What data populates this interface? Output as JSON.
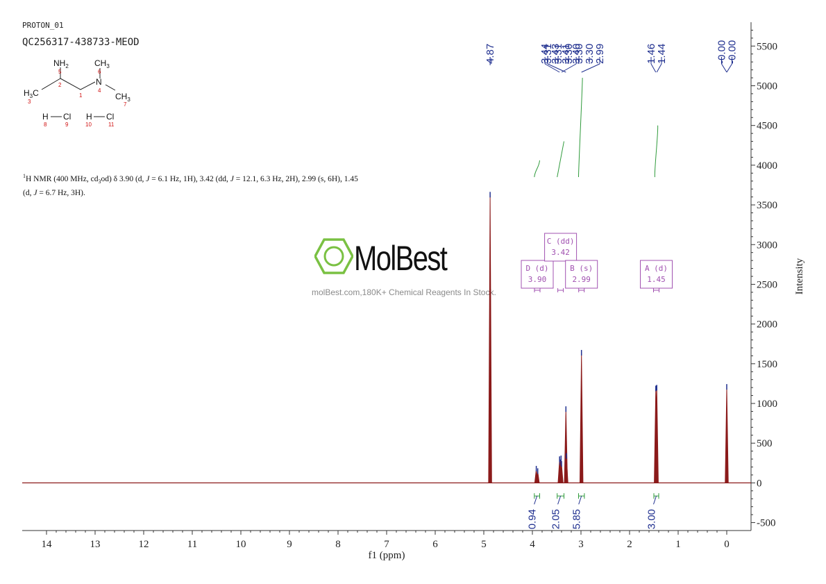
{
  "header": {
    "spectrum_name": "PROTON_01",
    "sample_id": "QC256317-438733-MEOD"
  },
  "structure": {
    "nh2_label": "NH2",
    "ch3_top_label": "CH3",
    "n_label": "N",
    "h3c_label": "H3C",
    "ch3_right_label": "CH3",
    "atom_numbers": [
      "5",
      "6",
      "2",
      "1",
      "4",
      "3",
      "7"
    ],
    "hcl_1": {
      "h": "H",
      "cl": "Cl",
      "h_num": "8",
      "cl_num": "9"
    },
    "hcl_2": {
      "h": "H",
      "cl": "Cl",
      "h_num": "10",
      "cl_num": "11"
    }
  },
  "description": {
    "line1": "1H NMR (400 MHz, cd3od) δ 3.90 (d, J = 6.1 Hz, 1H), 3.42 (dd, J = 12.1, 6.3 Hz, 2H), 2.99 (s, 6H), 1.45",
    "line2": "(d, J = 6.7 Hz, 3H)."
  },
  "watermark": {
    "brand": "MolBest",
    "url": "molBest.com,180K+ Chemical Reagents In Stock."
  },
  "colors": {
    "spectrum": "#8b1a1a",
    "peak_labels": "#1f2f8f",
    "integral": "#2e9a3a",
    "multiplet_box": "#a050b0",
    "logo": "#7ac143"
  },
  "chart_data": {
    "type": "line",
    "xlabel": "f1 (ppm)",
    "ylabel": "Intensity",
    "xlim": [
      14.5,
      -0.5
    ],
    "ylim": [
      -600,
      5800
    ],
    "x_ticks": [
      14,
      13,
      12,
      11,
      10,
      9,
      8,
      7,
      6,
      5,
      4,
      3,
      2,
      1,
      0
    ],
    "y_ticks": [
      -500,
      0,
      500,
      1000,
      1500,
      2000,
      2500,
      3000,
      3500,
      4000,
      4500,
      5000,
      5500
    ],
    "peaks": [
      {
        "ppm": 4.87,
        "height": 3620
      },
      {
        "ppm": 3.92,
        "height": 170
      },
      {
        "ppm": 3.89,
        "height": 140
      },
      {
        "ppm": 3.44,
        "height": 290
      },
      {
        "ppm": 3.43,
        "height": 250
      },
      {
        "ppm": 3.41,
        "height": 300
      },
      {
        "ppm": 3.4,
        "height": 230
      },
      {
        "ppm": 3.31,
        "height": 920
      },
      {
        "ppm": 3.3,
        "height": 330
      },
      {
        "ppm": 2.99,
        "height": 1630
      },
      {
        "ppm": 1.46,
        "height": 1180
      },
      {
        "ppm": 1.44,
        "height": 1190
      },
      {
        "ppm": 0.0,
        "height": 1200
      }
    ],
    "peak_labels": [
      "4.87",
      "3.44",
      "3.43",
      "3.41",
      "3.40",
      "3.31",
      "3.31",
      "3.30",
      "3.30",
      "3.30",
      "2.99",
      "1.46",
      "1.44",
      "-0.00",
      "-0.00"
    ],
    "peak_label_groups": [
      {
        "labels": [
          0
        ],
        "ppm_from": 4.87,
        "ppm_to": 4.87
      },
      {
        "labels": [
          1,
          2,
          3,
          4
        ],
        "ppm_from": 3.44,
        "ppm_to": 3.4
      },
      {
        "labels": [
          5,
          6,
          7,
          8,
          9,
          10
        ],
        "ppm_from": 3.31,
        "ppm_to": 2.99
      },
      {
        "labels": [
          11,
          12
        ],
        "ppm_from": 1.46,
        "ppm_to": 1.44
      },
      {
        "labels": [
          13,
          14
        ],
        "ppm_from": 0.0,
        "ppm_to": 0.0
      }
    ],
    "integrals": [
      {
        "value": "0.94",
        "from": 3.96,
        "to": 3.85
      },
      {
        "value": "2.05",
        "from": 3.49,
        "to": 3.35
      },
      {
        "value": "5.85",
        "from": 3.05,
        "to": 2.93
      },
      {
        "value": "3.00",
        "from": 1.5,
        "to": 1.4
      }
    ],
    "integral_curves": [
      {
        "from": 3.96,
        "to": 3.85,
        "y_start": 3850,
        "y_end": 4060
      },
      {
        "from": 3.49,
        "to": 3.35,
        "y_start": 3850,
        "y_end": 4300
      },
      {
        "from": 3.05,
        "to": 2.97,
        "y_start": 3850,
        "y_end": 5100
      },
      {
        "from": 1.48,
        "to": 1.42,
        "y_start": 3850,
        "y_end": 4500
      }
    ],
    "multiplets": [
      {
        "label": "D (d)",
        "shift": "3.90",
        "ppm": 3.9
      },
      {
        "label": "C (dd)",
        "shift": "3.42",
        "ppm": 3.42
      },
      {
        "label": "B (s)",
        "shift": "2.99",
        "ppm": 2.99
      },
      {
        "label": "A (d)",
        "shift": "1.45",
        "ppm": 1.45
      }
    ]
  }
}
